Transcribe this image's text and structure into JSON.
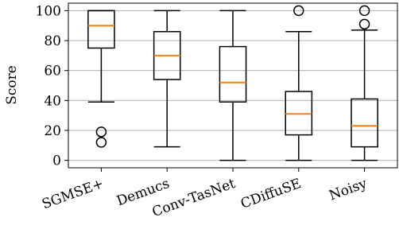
{
  "chart_data": {
    "type": "box",
    "y_label": "Score",
    "categories": [
      "SGMSE+",
      "Demucs",
      "Conv-TasNet",
      "CDiffuSE",
      "Noisy"
    ],
    "boxes": [
      {
        "min": 39,
        "q1": 75,
        "median": 90,
        "q3": 100,
        "max": 100,
        "outliers": [
          19,
          12
        ]
      },
      {
        "min": 9,
        "q1": 54,
        "median": 70,
        "q3": 86,
        "max": 100,
        "outliers": []
      },
      {
        "min": 0,
        "q1": 39,
        "median": 52,
        "q3": 76,
        "max": 100,
        "outliers": []
      },
      {
        "min": 0,
        "q1": 17,
        "median": 31,
        "q3": 46,
        "max": 86,
        "outliers": [
          100
        ]
      },
      {
        "min": 0,
        "q1": 9,
        "median": 23,
        "q3": 41,
        "max": 87,
        "outliers": [
          91,
          100
        ]
      }
    ],
    "color": "#000000",
    "median_color": "#ff7f0e",
    "ylim": [
      -5,
      105
    ],
    "yticks": [
      0,
      20,
      40,
      60,
      80,
      100
    ],
    "grid": true
  }
}
